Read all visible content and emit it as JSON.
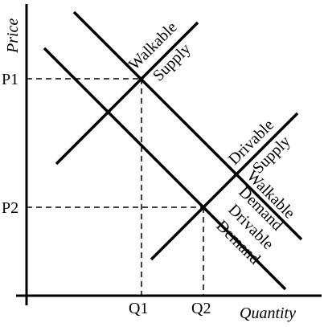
{
  "axes": {
    "y_label": "Price",
    "x_label": "Quantity"
  },
  "price_levels": [
    "P1",
    "P2"
  ],
  "quantity_levels": [
    "Q1",
    "Q2"
  ],
  "curves": [
    {
      "line1": "Walkable",
      "line2": "Supply"
    },
    {
      "line1": "Drivable",
      "line2": "Supply"
    },
    {
      "line1": "Walkable",
      "line2": "Demand"
    },
    {
      "line1": "Drivable",
      "line2": "Demand"
    }
  ]
}
